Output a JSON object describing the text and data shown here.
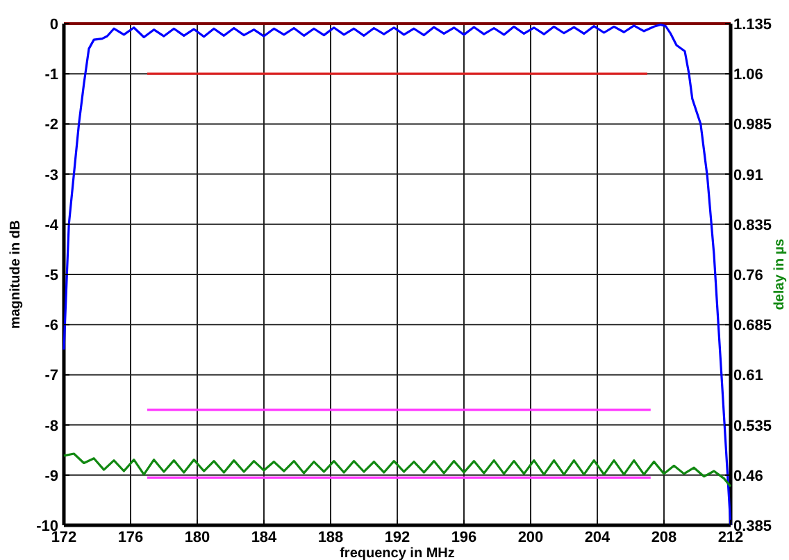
{
  "chart_data": {
    "type": "line",
    "xlabel": "frequency in MHz",
    "ylabel": "magnitude in dB",
    "y2label": "delay in µs",
    "xlim": [
      172,
      212
    ],
    "xticks": [
      172,
      176,
      180,
      184,
      188,
      192,
      196,
      200,
      204,
      208,
      212
    ],
    "ylim": [
      -10,
      0
    ],
    "yticks": [
      -10,
      -9,
      -8,
      -7,
      -6,
      -5,
      -4,
      -3,
      -2,
      -1,
      0
    ],
    "y2lim": [
      0.385,
      1.135
    ],
    "y2ticks": [
      0.385,
      0.46,
      0.535,
      0.61,
      0.685,
      0.76,
      0.835,
      0.91,
      0.985,
      1.06,
      1.135
    ],
    "grid": true,
    "line_style": "solid",
    "marker": "none",
    "ref_lines": [
      {
        "axis": "y",
        "value": 0,
        "color": "#800000"
      }
    ],
    "series": [
      {
        "color": "#0000ff",
        "x": [
          172,
          172.3,
          172.6,
          172.9,
          173.2,
          173.5,
          173.8,
          174.3,
          174.6,
          175,
          175.6,
          176.2,
          176.8,
          177.4,
          178,
          178.6,
          179.2,
          179.8,
          180.4,
          181,
          181.6,
          182.2,
          182.8,
          183.4,
          184,
          184.6,
          185.2,
          185.8,
          186.4,
          187,
          187.6,
          188.2,
          188.8,
          189.4,
          190,
          190.6,
          191.2,
          191.8,
          192.4,
          193,
          193.6,
          194.2,
          194.8,
          195.4,
          196,
          196.6,
          197.2,
          197.8,
          198.4,
          199,
          199.6,
          200.2,
          200.8,
          201.4,
          202,
          202.6,
          203.2,
          203.8,
          204.4,
          205,
          205.6,
          206.2,
          206.8,
          207.4,
          207.8,
          208.1,
          208.4,
          208.75,
          209.25,
          209.5,
          209.7,
          210.2,
          210.6,
          211,
          211.45,
          212
        ],
        "values": [
          -6.5,
          -4,
          -3,
          -2,
          -1.2,
          -0.5,
          -0.32,
          -0.3,
          -0.25,
          -0.1,
          -0.22,
          -0.08,
          -0.27,
          -0.12,
          -0.25,
          -0.1,
          -0.24,
          -0.11,
          -0.26,
          -0.1,
          -0.24,
          -0.09,
          -0.23,
          -0.12,
          -0.25,
          -0.1,
          -0.22,
          -0.09,
          -0.24,
          -0.1,
          -0.23,
          -0.08,
          -0.22,
          -0.1,
          -0.24,
          -0.09,
          -0.21,
          -0.08,
          -0.22,
          -0.1,
          -0.23,
          -0.07,
          -0.2,
          -0.08,
          -0.22,
          -0.07,
          -0.21,
          -0.09,
          -0.22,
          -0.06,
          -0.2,
          -0.08,
          -0.21,
          -0.06,
          -0.19,
          -0.07,
          -0.2,
          -0.05,
          -0.18,
          -0.06,
          -0.17,
          -0.04,
          -0.15,
          -0.06,
          -0.02,
          -0.05,
          -0.2,
          -0.43,
          -0.55,
          -1,
          -1.5,
          -2,
          -3.05,
          -4.6,
          -7,
          -10
        ]
      },
      {
        "color": "#dd2222",
        "x": [
          177,
          207
        ],
        "values": [
          -1,
          -1
        ]
      },
      {
        "color": "#ff33ff",
        "x": [
          177,
          207.2
        ],
        "values": [
          -7.7,
          -7.7
        ]
      },
      {
        "color": "#ff33ff",
        "x": [
          177,
          207.2
        ],
        "values": [
          -9.05,
          -9.05
        ]
      },
      {
        "color": "#118811",
        "axis": "y2",
        "x": [
          172,
          172.6,
          173.2,
          173.8,
          174.4,
          175,
          175.6,
          176.2,
          176.8,
          177.4,
          178,
          178.6,
          179.2,
          179.8,
          180.4,
          181,
          181.6,
          182.2,
          182.8,
          183.4,
          184,
          184.6,
          185.2,
          185.8,
          186.4,
          187,
          187.6,
          188.2,
          188.8,
          189.4,
          190,
          190.6,
          191.2,
          191.8,
          192.4,
          193,
          193.6,
          194.2,
          194.8,
          195.4,
          196,
          196.6,
          197.2,
          197.8,
          198.4,
          199,
          199.6,
          200.2,
          200.8,
          201.4,
          202,
          202.6,
          203.2,
          203.8,
          204.4,
          205,
          205.6,
          206.2,
          206.8,
          207.4,
          208,
          208.6,
          209.2,
          209.8,
          210.4,
          211,
          211.6,
          212
        ],
        "values": [
          0.489,
          0.492,
          0.478,
          0.485,
          0.468,
          0.482,
          0.466,
          0.483,
          0.461,
          0.483,
          0.465,
          0.482,
          0.464,
          0.483,
          0.466,
          0.481,
          0.464,
          0.482,
          0.465,
          0.481,
          0.467,
          0.48,
          0.466,
          0.481,
          0.463,
          0.48,
          0.465,
          0.481,
          0.464,
          0.481,
          0.465,
          0.48,
          0.464,
          0.481,
          0.465,
          0.48,
          0.464,
          0.481,
          0.463,
          0.481,
          0.464,
          0.481,
          0.463,
          0.482,
          0.462,
          0.481,
          0.462,
          0.482,
          0.461,
          0.482,
          0.461,
          0.482,
          0.461,
          0.482,
          0.461,
          0.482,
          0.461,
          0.482,
          0.461,
          0.48,
          0.462,
          0.474,
          0.462,
          0.471,
          0.458,
          0.466,
          0.455,
          0.443
        ]
      }
    ]
  }
}
